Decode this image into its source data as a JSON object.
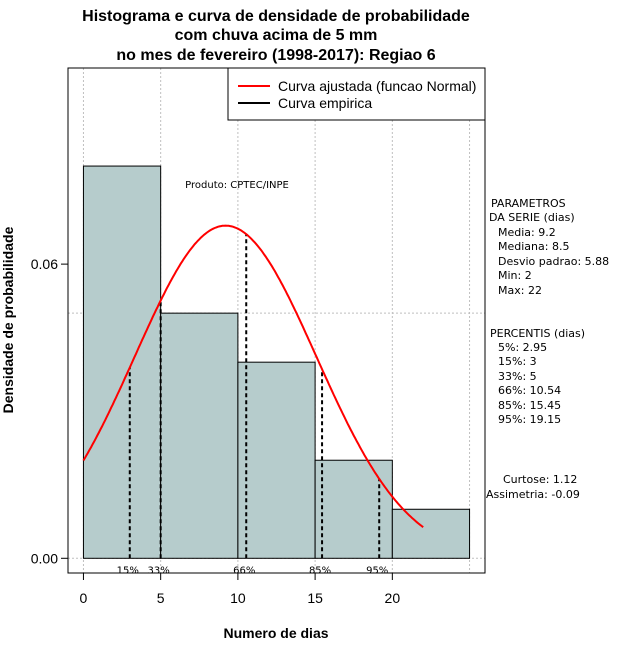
{
  "chart_data": {
    "type": "bar",
    "title_lines": [
      "Histograma e curva de densidade de probabilidade",
      "com chuva acima de 5 mm",
      "no mes de fevereiro (1998-2017): Regiao 6"
    ],
    "xlabel": "Numero de dias",
    "ylabel": "Densidade de probabilidade",
    "xlim": [
      -1,
      26
    ],
    "ylim": [
      -0.003,
      0.1
    ],
    "x_ticks": [
      0,
      5,
      10,
      15,
      20
    ],
    "x_tick_labels": [
      "0",
      "5",
      "10",
      "15",
      "20"
    ],
    "y_ticks": [
      0.0,
      0.06
    ],
    "y_tick_labels": [
      "0.00",
      "0.06"
    ],
    "x_grid": [
      0,
      5,
      10,
      15,
      20,
      25
    ],
    "y_grid": [
      0.0,
      0.05,
      0.1
    ],
    "bins": [
      {
        "from": 0,
        "to": 5,
        "density": 0.08
      },
      {
        "from": 5,
        "to": 10,
        "density": 0.05
      },
      {
        "from": 10,
        "to": 15,
        "density": 0.04
      },
      {
        "from": 15,
        "to": 20,
        "density": 0.02
      },
      {
        "from": 20,
        "to": 25,
        "density": 0.01
      }
    ],
    "fitted_curve": {
      "name": "Curva ajustada (funcao Normal)",
      "mean": 9.2,
      "sd": 5.88,
      "x_from": 0,
      "x_to": 22,
      "color": "#ff0000"
    },
    "empirical_curve": {
      "name": "Curva empirica",
      "color": "#000000"
    },
    "percentile_markers": [
      {
        "label": "15%",
        "x": 3.0
      },
      {
        "label": "33%",
        "x": 5.0
      },
      {
        "label": "66%",
        "x": 10.54
      },
      {
        "label": "85%",
        "x": 15.45
      },
      {
        "label": "95%",
        "x": 19.15
      }
    ],
    "legend_position": "top-right",
    "bar_color": "#b6cccc",
    "product_label": "Produto: CPTEC/INPE",
    "side_panel": {
      "params_title": [
        "PARAMETROS",
        "DA SERIE (dias)"
      ],
      "params": [
        "Media: 9.2",
        "Mediana: 8.5",
        "Desvio padrao: 5.88",
        "Min: 2",
        "Max: 22"
      ],
      "percentis_title": "PERCENTIS (dias)",
      "percentis": [
        "5%: 2.95",
        "15%: 3",
        "33%: 5",
        "66%: 10.54",
        "85%: 15.45",
        "95%: 19.15"
      ],
      "shape": [
        "Curtose: 1.12",
        "Assimetria: -0.09"
      ]
    }
  }
}
